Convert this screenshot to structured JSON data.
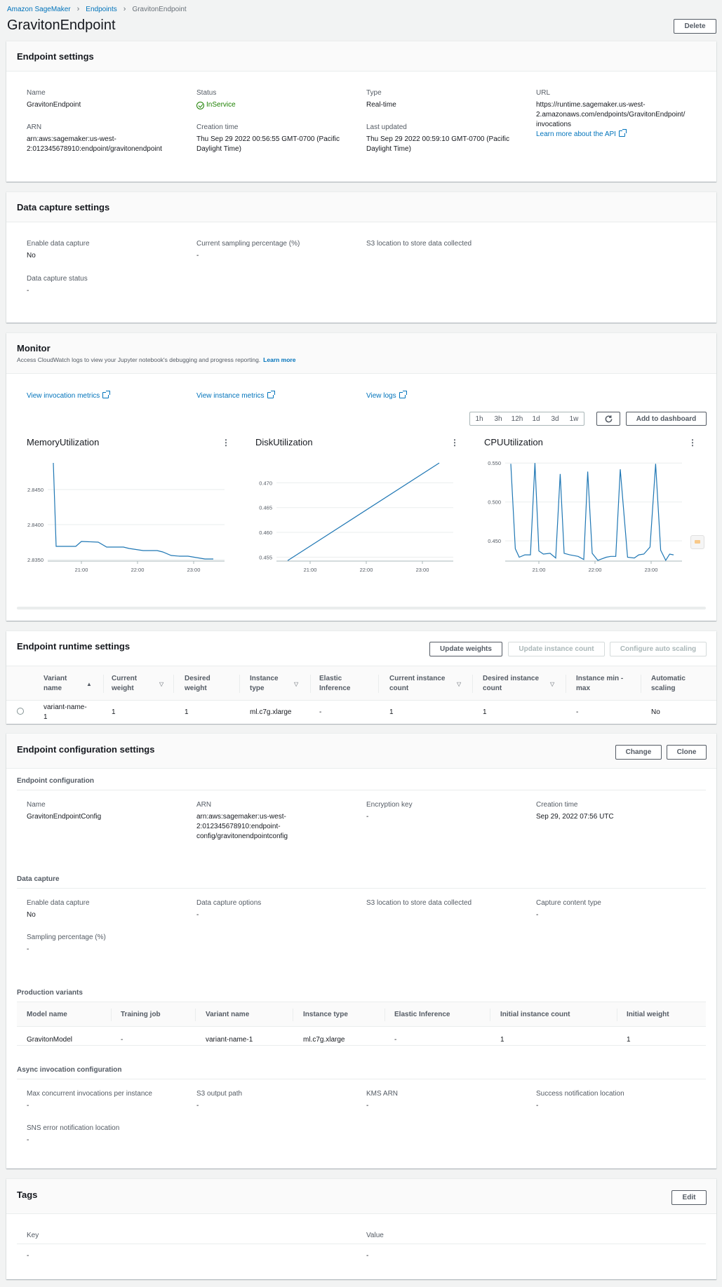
{
  "breadcrumb": [
    "Amazon SageMaker",
    "Endpoints",
    "GravitonEndpoint"
  ],
  "page_title": "GravitonEndpoint",
  "delete_label": "Delete",
  "endpoint_settings": {
    "title": "Endpoint settings",
    "name_label": "Name",
    "name_value": "GravitonEndpoint",
    "status_label": "Status",
    "status_value": "InService",
    "type_label": "Type",
    "type_value": "Real-time",
    "url_label": "URL",
    "url_line1": "https://runtime.sagemaker.us-west-",
    "url_line2": "2.amazonaws.com/endpoints/GravitonEndpoint/",
    "url_line3": "invocations",
    "api_link": "Learn more about the API",
    "arn_label": "ARN",
    "arn_line1": "arn:aws:sagemaker:us-west-",
    "arn_line2": "2:012345678910:endpoint/gravitonendpoint",
    "creation_label": "Creation time",
    "creation_line1": "Thu Sep 29 2022 00:56:55 GMT-0700 (Pacific",
    "creation_line2": "Daylight Time)",
    "updated_label": "Last updated",
    "updated_line1": "Thu Sep 29 2022 00:59:10 GMT-0700 (Pacific",
    "updated_line2": "Daylight Time)"
  },
  "data_capture": {
    "title": "Data capture settings",
    "enable_label": "Enable data capture",
    "enable_value": "No",
    "sampling_label": "Current sampling percentage (%)",
    "sampling_value": "-",
    "s3_label": "S3 location to store data collected",
    "status_label": "Data capture status",
    "status_value": "-"
  },
  "monitor": {
    "title": "Monitor",
    "description": "Access CloudWatch logs to view your Jupyter notebook's debugging and progress reporting.",
    "learn_more": "Learn more",
    "invocation_link": "View invocation metrics",
    "instance_link": "View instance metrics",
    "logs_link": "View logs",
    "time_ranges": [
      "1h",
      "3h",
      "12h",
      "1d",
      "3d",
      "1w"
    ],
    "add_dashboard": "Add to dashboard"
  },
  "chart_data": [
    {
      "type": "line",
      "title": "MemoryUtilization",
      "x_ticks": [
        "21:00",
        "22:00",
        "23:00"
      ],
      "y_ticks": [
        "2.8350",
        "2.8400",
        "2.8450"
      ],
      "ylim": [
        2.8348,
        2.849
      ],
      "x": [
        20.5,
        20.55,
        20.9,
        21.0,
        21.3,
        21.45,
        21.75,
        21.85,
        22.1,
        22.35,
        22.45,
        22.6,
        22.75,
        22.9,
        23.05,
        23.2,
        23.35
      ],
      "values": [
        2.8488,
        2.8369,
        2.8369,
        2.8376,
        2.8375,
        2.8368,
        2.8368,
        2.8366,
        2.8363,
        2.8363,
        2.8361,
        2.8356,
        2.8355,
        2.8355,
        2.8353,
        2.8351,
        2.8351
      ]
    },
    {
      "type": "line",
      "title": "DiskUtilization",
      "x_ticks": [
        "21:00",
        "22:00",
        "23:00"
      ],
      "y_ticks": [
        "0.455",
        "0.460",
        "0.465",
        "0.470"
      ],
      "ylim": [
        0.4542,
        0.4743
      ],
      "x": [
        20.6,
        23.3
      ],
      "values": [
        0.4543,
        0.474
      ]
    },
    {
      "type": "line",
      "title": "CPUUtilization",
      "x_ticks": [
        "21:00",
        "22:00",
        "23:00"
      ],
      "y_ticks": [
        "0.450",
        "0.500",
        "0.550"
      ],
      "ylim": [
        0.424,
        0.552
      ],
      "x": [
        20.5,
        20.58,
        20.65,
        20.75,
        20.85,
        20.93,
        21.0,
        21.08,
        21.2,
        21.3,
        21.38,
        21.45,
        21.55,
        21.7,
        21.8,
        21.87,
        21.95,
        22.05,
        22.2,
        22.28,
        22.37,
        22.45,
        22.58,
        22.7,
        22.78,
        22.87,
        22.98,
        23.08,
        23.17,
        23.26,
        23.33,
        23.4
      ],
      "values": [
        0.549,
        0.44,
        0.429,
        0.432,
        0.432,
        0.55,
        0.437,
        0.433,
        0.434,
        0.428,
        0.536,
        0.434,
        0.432,
        0.43,
        0.426,
        0.539,
        0.434,
        0.425,
        0.429,
        0.43,
        0.43,
        0.542,
        0.429,
        0.428,
        0.432,
        0.433,
        0.442,
        0.549,
        0.438,
        0.425,
        0.433,
        0.432
      ]
    }
  ],
  "runtime": {
    "title": "Endpoint runtime settings",
    "update_weights": "Update weights",
    "update_count": "Update instance count",
    "configure_scaling": "Configure auto scaling",
    "headers": [
      [
        "Variant",
        "name"
      ],
      [
        "Current",
        "weight"
      ],
      [
        "Desired",
        "weight"
      ],
      [
        "Instance",
        "type"
      ],
      [
        "Elastic",
        "Inference"
      ],
      [
        "Current instance",
        "count"
      ],
      [
        "Desired instance",
        "count"
      ],
      [
        "Instance min -",
        "max"
      ],
      [
        "Automatic",
        "scaling"
      ]
    ],
    "row": {
      "variant_line1": "variant-name-",
      "variant_line2": "1",
      "current_weight": "1",
      "desired_weight": "1",
      "instance_type": "ml.c7g.xlarge",
      "elastic": "-",
      "current_count": "1",
      "desired_count": "1",
      "min_max": "-",
      "auto_scaling": "No"
    }
  },
  "config": {
    "title": "Endpoint configuration settings",
    "change": "Change",
    "clone": "Clone",
    "ec_title": "Endpoint configuration",
    "name_label": "Name",
    "name_value": "GravitonEndpointConfig",
    "arn_label": "ARN",
    "arn_line1": "arn:aws:sagemaker:us-west-",
    "arn_line2": "2:012345678910:endpoint-",
    "arn_line3": "config/gravitonendpointconfig",
    "enc_label": "Encryption key",
    "enc_value": "-",
    "creation_label": "Creation time",
    "creation_value": "Sep 29, 2022 07:56 UTC",
    "dc_title": "Data capture",
    "dc_enable_label": "Enable data capture",
    "dc_enable_value": "No",
    "dc_options_label": "Data capture options",
    "dc_options_value": "-",
    "dc_s3_label": "S3 location to store data collected",
    "dc_content_label": "Capture content type",
    "dc_content_value": "-",
    "dc_sampling_label": "Sampling percentage (%)",
    "dc_sampling_value": "-",
    "pv_title": "Production variants",
    "pv_headers": [
      "Model name",
      "Training job",
      "Variant name",
      "Instance type",
      "Elastic Inference",
      "Initial instance count",
      "Initial weight"
    ],
    "pv_row": [
      "GravitonModel",
      "-",
      "variant-name-1",
      "ml.c7g.xlarge",
      "-",
      "1",
      "1"
    ],
    "async_title": "Async invocation configuration",
    "async_max_label": "Max concurrent invocations per instance",
    "async_max_value": "-",
    "async_s3_label": "S3 output path",
    "async_s3_value": "-",
    "async_kms_label": "KMS ARN",
    "async_kms_value": "-",
    "async_success_label": "Success notification location",
    "async_success_value": "-",
    "async_sns_label": "SNS error notification location",
    "async_sns_value": "-"
  },
  "tags": {
    "title": "Tags",
    "edit": "Edit",
    "key_label": "Key",
    "value_label": "Value",
    "key_value": "-",
    "value_value": "-"
  }
}
